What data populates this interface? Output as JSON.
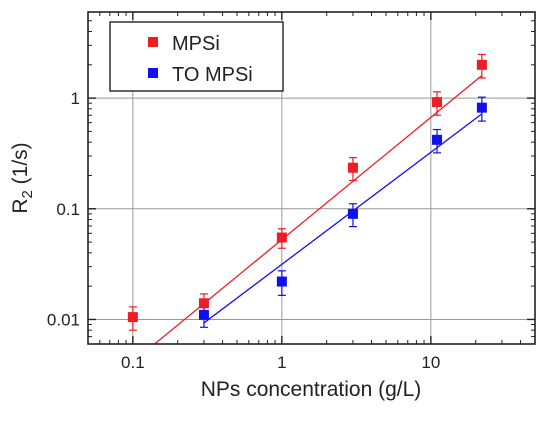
{
  "chart_data": {
    "type": "scatter",
    "x_scale": "log",
    "y_scale": "log",
    "xlim": [
      0.05,
      50
    ],
    "ylim": [
      0.006,
      6
    ],
    "grid": true,
    "xlabel": "NPs concentration (g/L)",
    "ylabel": {
      "main": "R",
      "subscript": "2",
      "unit": " (1/s)"
    },
    "x_ticks": [
      {
        "value": 0.1,
        "label": "0.1"
      },
      {
        "value": 1,
        "label": "1"
      },
      {
        "value": 10,
        "label": "10"
      }
    ],
    "y_ticks": [
      {
        "value": 0.01,
        "label": "0.01"
      },
      {
        "value": 0.1,
        "label": "0.1"
      },
      {
        "value": 1,
        "label": "1"
      }
    ],
    "legend_position": "top-left",
    "series": [
      {
        "name": "MPSi",
        "color": "#ee1c24",
        "marker": "square",
        "points": [
          {
            "x": 0.1,
            "y": 0.0105,
            "err": 0.0025
          },
          {
            "x": 0.3,
            "y": 0.014,
            "err": 0.003
          },
          {
            "x": 1,
            "y": 0.055,
            "err": 0.011
          },
          {
            "x": 3,
            "y": 0.235,
            "err": 0.055
          },
          {
            "x": 11,
            "y": 0.92,
            "err": 0.22
          },
          {
            "x": 22,
            "y": 2.0,
            "err": 0.48
          }
        ],
        "fit_line": {
          "x_start": 0.14,
          "y_start": 0.006,
          "x_end": 22,
          "y_end": 1.6
        }
      },
      {
        "name": "TO MPSi",
        "color": "#1010ee",
        "marker": "square",
        "points": [
          {
            "x": 0.3,
            "y": 0.011,
            "err": 0.0025
          },
          {
            "x": 1,
            "y": 0.022,
            "err": 0.0055
          },
          {
            "x": 3,
            "y": 0.09,
            "err": 0.021
          },
          {
            "x": 11,
            "y": 0.42,
            "err": 0.1
          },
          {
            "x": 22,
            "y": 0.82,
            "err": 0.2
          }
        ],
        "fit_line": {
          "x_start": 0.3,
          "y_start": 0.0093,
          "x_end": 22,
          "y_end": 0.72
        }
      }
    ]
  }
}
